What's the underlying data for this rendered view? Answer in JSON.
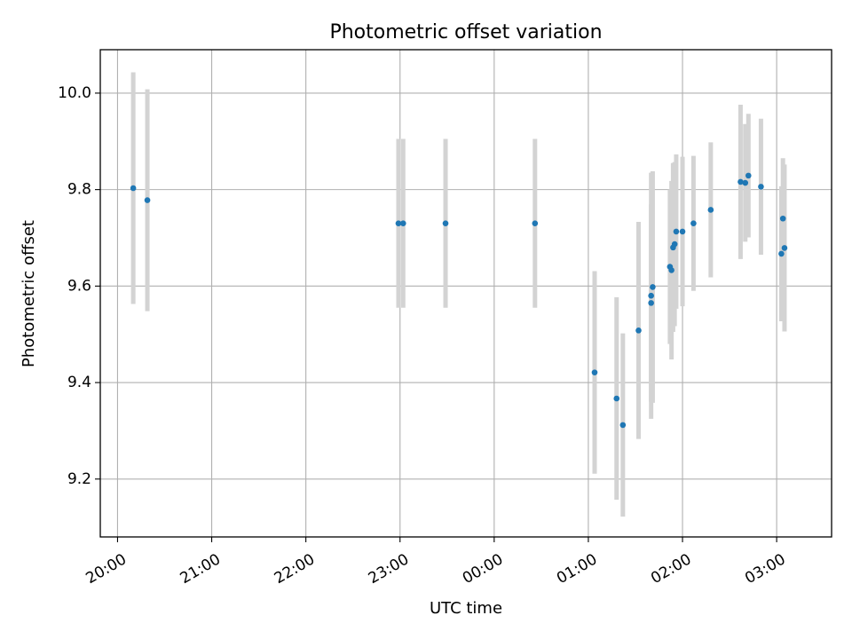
{
  "chart_data": {
    "type": "scatter",
    "title": "Photometric offset variation",
    "xlabel": "UTC time",
    "ylabel": "Photometric offset",
    "x_ticks": [
      "20:00",
      "21:00",
      "22:00",
      "23:00",
      "00:00",
      "01:00",
      "02:00",
      "03:00"
    ],
    "y_ticks": [
      "9.2",
      "9.4",
      "9.6",
      "9.8",
      "10.0"
    ],
    "xlim": [
      "19:49",
      "03:35"
    ],
    "ylim": [
      9.08,
      10.09
    ],
    "grid": true,
    "colors": {
      "marker": "#1f77b4",
      "errorbar": "#d3d3d3",
      "grid": "#b0b0b0"
    },
    "series": [
      {
        "points": [
          {
            "x": "20:10",
            "y": 9.803,
            "yerr": 0.24
          },
          {
            "x": "20:19",
            "y": 9.778,
            "yerr": 0.23
          },
          {
            "x": "22:59",
            "y": 9.73,
            "yerr": 0.175
          },
          {
            "x": "23:02",
            "y": 9.73,
            "yerr": 0.175
          },
          {
            "x": "23:29",
            "y": 9.73,
            "yerr": 0.175
          },
          {
            "x": "00:26",
            "y": 9.73,
            "yerr": 0.175
          },
          {
            "x": "01:04",
            "y": 9.421,
            "yerr": 0.21
          },
          {
            "x": "01:18",
            "y": 9.367,
            "yerr": 0.21
          },
          {
            "x": "01:22",
            "y": 9.312,
            "yerr": 0.19
          },
          {
            "x": "01:32",
            "y": 9.508,
            "yerr": 0.225
          },
          {
            "x": "01:40",
            "y": 9.565,
            "yerr": 0.205
          },
          {
            "x": "01:40",
            "y": 9.58,
            "yerr": 0.255
          },
          {
            "x": "01:41",
            "y": 9.598,
            "yerr": 0.24
          },
          {
            "x": "01:52",
            "y": 9.64,
            "yerr": 0.16
          },
          {
            "x": "01:53",
            "y": 9.633,
            "yerr": 0.185
          },
          {
            "x": "01:54",
            "y": 9.68,
            "yerr": 0.175
          },
          {
            "x": "01:55",
            "y": 9.687,
            "yerr": 0.17
          },
          {
            "x": "01:56",
            "y": 9.713,
            "yerr": 0.16
          },
          {
            "x": "02:00",
            "y": 9.713,
            "yerr": 0.155
          },
          {
            "x": "02:07",
            "y": 9.73,
            "yerr": 0.14
          },
          {
            "x": "02:18",
            "y": 9.758,
            "yerr": 0.14
          },
          {
            "x": "02:37",
            "y": 9.816,
            "yerr": 0.16
          },
          {
            "x": "02:40",
            "y": 9.814,
            "yerr": 0.122
          },
          {
            "x": "02:42",
            "y": 9.829,
            "yerr": 0.128
          },
          {
            "x": "02:50",
            "y": 9.806,
            "yerr": 0.141
          },
          {
            "x": "03:03",
            "y": 9.667,
            "yerr": 0.14
          },
          {
            "x": "03:04",
            "y": 9.74,
            "yerr": 0.125
          },
          {
            "x": "03:05",
            "y": 9.679,
            "yerr": 0.173
          }
        ]
      }
    ]
  }
}
